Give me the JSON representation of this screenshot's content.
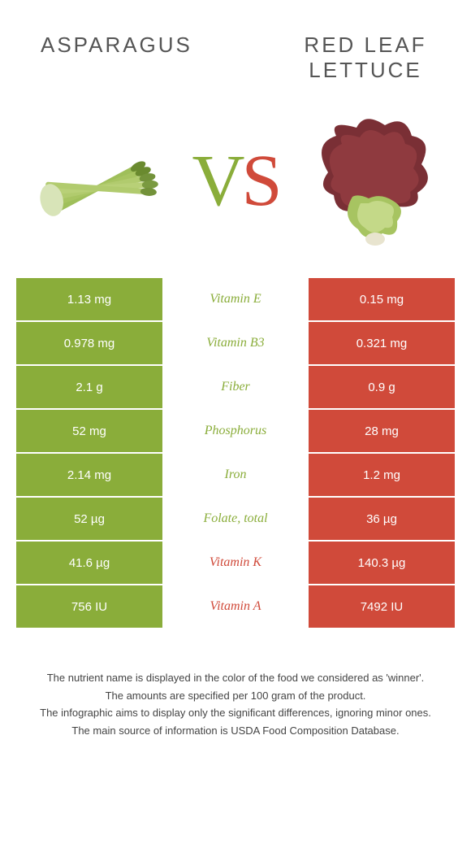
{
  "colors": {
    "left": "#8aad3a",
    "right": "#d04a3a",
    "background": "#ffffff",
    "text": "#444444"
  },
  "header": {
    "left_title": "ASPARAGUS",
    "right_title": "RED LEAF LETTUCE"
  },
  "vs": {
    "v": "V",
    "s": "S"
  },
  "rows": [
    {
      "nutrient": "Vitamin E",
      "left": "1.13 mg",
      "right": "0.15 mg",
      "winner": "left"
    },
    {
      "nutrient": "Vitamin B3",
      "left": "0.978 mg",
      "right": "0.321 mg",
      "winner": "left"
    },
    {
      "nutrient": "Fiber",
      "left": "2.1 g",
      "right": "0.9 g",
      "winner": "left"
    },
    {
      "nutrient": "Phosphorus",
      "left": "52 mg",
      "right": "28 mg",
      "winner": "left"
    },
    {
      "nutrient": "Iron",
      "left": "2.14 mg",
      "right": "1.2 mg",
      "winner": "left"
    },
    {
      "nutrient": "Folate, total",
      "left": "52 µg",
      "right": "36 µg",
      "winner": "left"
    },
    {
      "nutrient": "Vitamin K",
      "left": "41.6 µg",
      "right": "140.3 µg",
      "winner": "right"
    },
    {
      "nutrient": "Vitamin A",
      "left": "756 IU",
      "right": "7492 IU",
      "winner": "right"
    }
  ],
  "footnotes": [
    "The nutrient name is displayed in the color of the food we considered as 'winner'.",
    "The amounts are specified per 100 gram of the product.",
    "The infographic aims to display only the significant differences, ignoring minor ones.",
    "The main source of information is USDA Food Composition Database."
  ]
}
